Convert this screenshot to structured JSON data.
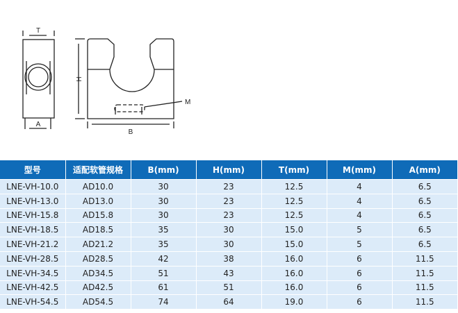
{
  "drawing": {
    "labels": {
      "t": "T",
      "a": "A",
      "h": "H",
      "b": "B",
      "m": "M"
    }
  },
  "table": {
    "headers": [
      "型号",
      "适配软管规格",
      "B(mm)",
      "H(mm)",
      "T(mm)",
      "M(mm)",
      "A(mm)"
    ],
    "rows": [
      [
        "LNE-VH-10.0",
        "AD10.0",
        "30",
        "23",
        "12.5",
        "4",
        "6.5"
      ],
      [
        "LNE-VH-13.0",
        "AD13.0",
        "30",
        "23",
        "12.5",
        "4",
        "6.5"
      ],
      [
        "LNE-VH-15.8",
        "AD15.8",
        "30",
        "23",
        "12.5",
        "4",
        "6.5"
      ],
      [
        "LNE-VH-18.5",
        "AD18.5",
        "35",
        "30",
        "15.0",
        "5",
        "6.5"
      ],
      [
        "LNE-VH-21.2",
        "AD21.2",
        "35",
        "30",
        "15.0",
        "5",
        "6.5"
      ],
      [
        "LNE-VH-28.5",
        "AD28.5",
        "42",
        "38",
        "16.0",
        "6",
        "11.5"
      ],
      [
        "LNE-VH-34.5",
        "AD34.5",
        "51",
        "43",
        "16.0",
        "6",
        "11.5"
      ],
      [
        "LNE-VH-42.5",
        "AD42.5",
        "61",
        "51",
        "16.0",
        "6",
        "11.5"
      ],
      [
        "LNE-VH-54.5",
        "AD54.5",
        "74",
        "64",
        "19.0",
        "6",
        "11.5"
      ]
    ],
    "colors": {
      "header_bg": "#0f6bb8",
      "row_bg": "#dcebf9"
    }
  }
}
